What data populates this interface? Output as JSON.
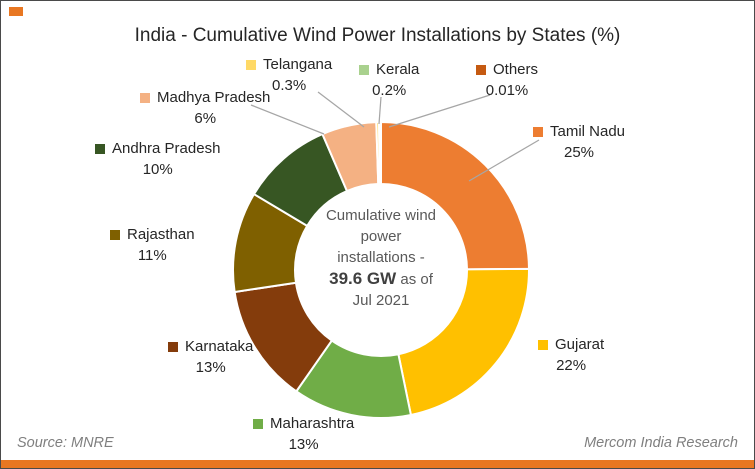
{
  "title": "India - Cumulative Wind Power Installations by States (%)",
  "accent_color": "#E87722",
  "center": {
    "line1": "Cumulative wind",
    "line2": "power",
    "line3": "installations -",
    "value": "39.6 GW",
    "value_suffix": " as of",
    "line5": "Jul 2021"
  },
  "footer": {
    "source": "Source: MNRE",
    "brand": "Mercom India Research"
  },
  "chart_data": {
    "type": "pie",
    "title": "India - Cumulative Wind Power Installations by States (%)",
    "units": "percent",
    "center_label": "Cumulative wind power installations - 39.6 GW as of Jul 2021",
    "legend_position": "around-slices",
    "series": [
      {
        "name": "Tamil Nadu",
        "value": 25,
        "label": "25%",
        "color": "#ED7D31"
      },
      {
        "name": "Gujarat",
        "value": 22,
        "label": "22%",
        "color": "#FFC000"
      },
      {
        "name": "Maharashtra",
        "value": 13,
        "label": "13%",
        "color": "#70AD47"
      },
      {
        "name": "Karnataka",
        "value": 13,
        "label": "13%",
        "color": "#843C0C"
      },
      {
        "name": "Rajasthan",
        "value": 11,
        "label": "11%",
        "color": "#7F6000"
      },
      {
        "name": "Andhra Pradesh",
        "value": 10,
        "label": "10%",
        "color": "#375623"
      },
      {
        "name": "Madhya Pradesh",
        "value": 6,
        "label": "6%",
        "color": "#F4B183"
      },
      {
        "name": "Telangana",
        "value": 0.3,
        "label": "0.3%",
        "color": "#FFD966"
      },
      {
        "name": "Kerala",
        "value": 0.2,
        "label": "0.2%",
        "color": "#A9D18E"
      },
      {
        "name": "Others",
        "value": 0.01,
        "label": "0.01%",
        "color": "#C55A11"
      }
    ]
  }
}
